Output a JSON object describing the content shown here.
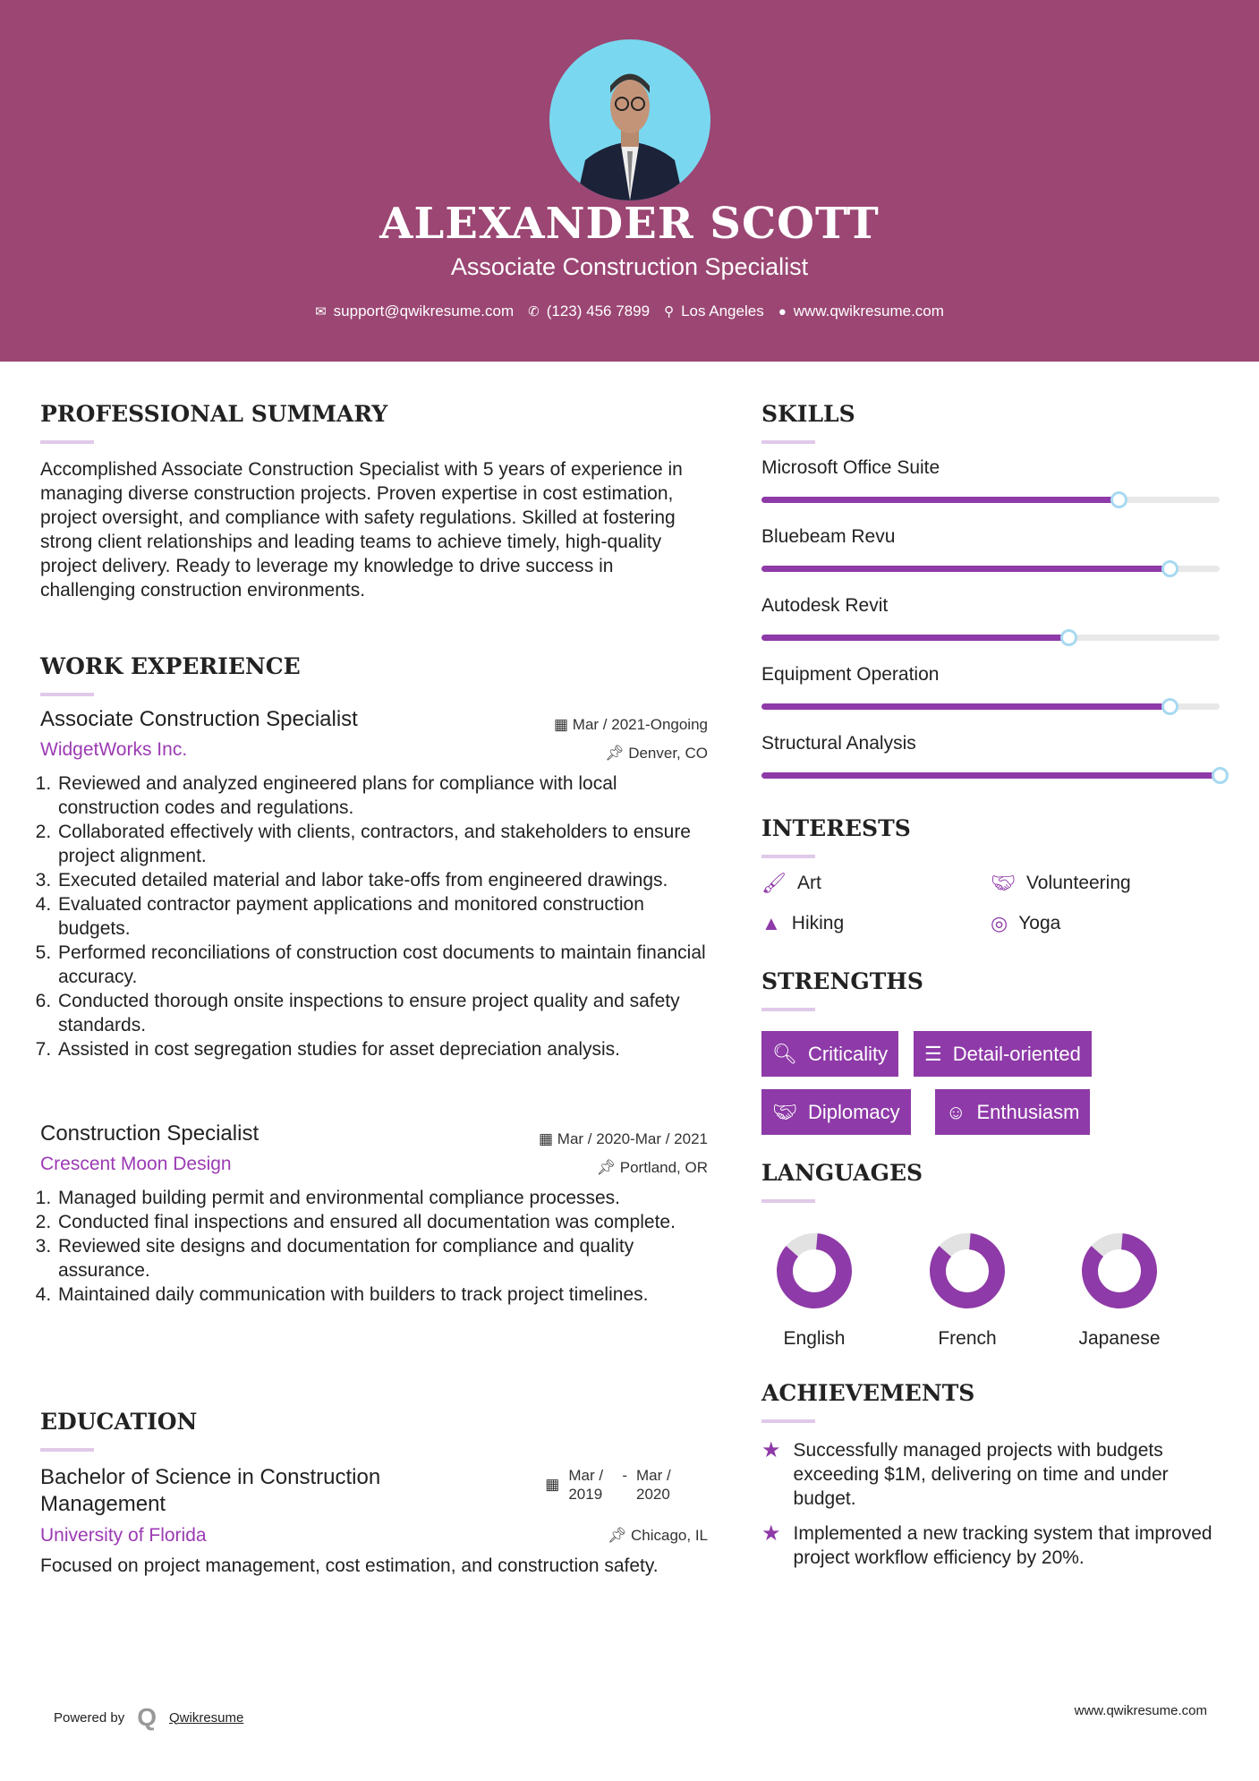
{
  "header": {
    "name": "ALEXANDER SCOTT",
    "title": "Associate Construction Specialist",
    "contact": [
      {
        "icon": "envelope-icon",
        "text": "support@qwikresume.com"
      },
      {
        "icon": "phone-icon",
        "text": "(123) 456 7899"
      },
      {
        "icon": "map-marker-icon",
        "text": "Los Angeles"
      },
      {
        "icon": "globe-icon",
        "text": "www.qwikresume.com"
      }
    ]
  },
  "summary": {
    "heading": "PROFESSIONAL SUMMARY",
    "text": "Accomplished Associate Construction Specialist with 5 years of experience in managing diverse construction projects. Proven expertise in cost estimation, project oversight, and compliance with safety regulations. Skilled at fostering strong client relationships and leading teams to achieve timely, high-quality project delivery. Ready to leverage my knowledge to drive success in challenging construction environments."
  },
  "work": {
    "heading": "WORK EXPERIENCE",
    "jobs": [
      {
        "title": "Associate Construction Specialist",
        "company": "WidgetWorks Inc.",
        "dates": "Mar / 2021-Ongoing",
        "location": "Denver, CO",
        "bullets": [
          "Reviewed and analyzed engineered plans for compliance with local construction codes and regulations.",
          "Collaborated effectively with clients, contractors, and stakeholders to ensure project alignment.",
          "Executed detailed material and labor take-offs from engineered drawings.",
          "Evaluated contractor payment applications and monitored construction budgets.",
          "Performed reconciliations of construction cost documents to maintain financial accuracy.",
          "Conducted thorough onsite inspections to ensure project quality and safety standards.",
          "Assisted in cost segregation studies for asset depreciation analysis."
        ]
      },
      {
        "title": "Construction Specialist",
        "company": "Crescent Moon Design",
        "dates": "Mar / 2020-Mar / 2021",
        "location": "Portland, OR",
        "bullets": [
          "Managed building permit and environmental compliance processes.",
          "Conducted final inspections and ensured all documentation was complete.",
          "Reviewed site designs and documentation for compliance and quality assurance.",
          "Maintained daily communication with builders to track project timelines."
        ]
      }
    ]
  },
  "education": {
    "heading": "EDUCATION",
    "degree": "Bachelor of Science in Construction Management",
    "school": "University of Florida",
    "start": "Mar / 2019",
    "end": "Mar / 2020",
    "location": "Chicago, IL",
    "text": "Focused on project management, cost estimation, and construction safety."
  },
  "skills": {
    "heading": "SKILLS",
    "items": [
      {
        "name": "Microsoft Office Suite",
        "level": 0.78
      },
      {
        "name": "Bluebeam Revu",
        "level": 0.89
      },
      {
        "name": "Autodesk Revit",
        "level": 0.67
      },
      {
        "name": "Equipment Operation",
        "level": 0.89
      },
      {
        "name": "Structural Analysis",
        "level": 1.0
      }
    ]
  },
  "interests": {
    "heading": "INTERESTS",
    "items": [
      {
        "icon": "paintbrush-icon",
        "label": "Art"
      },
      {
        "icon": "handshake-icon",
        "label": "Volunteering"
      },
      {
        "icon": "tree-icon",
        "label": "Hiking"
      },
      {
        "icon": "life-ring-icon",
        "label": "Yoga"
      }
    ]
  },
  "strengths": {
    "heading": "STRENGTHS",
    "items": [
      {
        "icon": "search-icon",
        "label": "Criticality"
      },
      {
        "icon": "list-icon",
        "label": "Detail-oriented"
      },
      {
        "icon": "handshake-icon",
        "label": "Diplomacy"
      },
      {
        "icon": "smile-icon",
        "label": "Enthusiasm"
      }
    ]
  },
  "languages": {
    "heading": "LANGUAGES",
    "items": [
      {
        "name": "English",
        "level": 0.85
      },
      {
        "name": "French",
        "level": 0.85
      },
      {
        "name": "Japanese",
        "level": 0.85
      }
    ]
  },
  "achievements": {
    "heading": "ACHIEVEMENTS",
    "items": [
      "Successfully managed projects with budgets exceeding $1M, delivering on time and under budget.",
      "Implemented a new tracking system that improved project workflow efficiency by 20%."
    ]
  },
  "footer": {
    "powered_by": "Powered by",
    "brand": "Qwikresume",
    "url": "www.qwikresume.com"
  },
  "colors": {
    "header": "#9b4673",
    "accent": "#8e3aa8",
    "photo_bg": "#79d8ef"
  }
}
